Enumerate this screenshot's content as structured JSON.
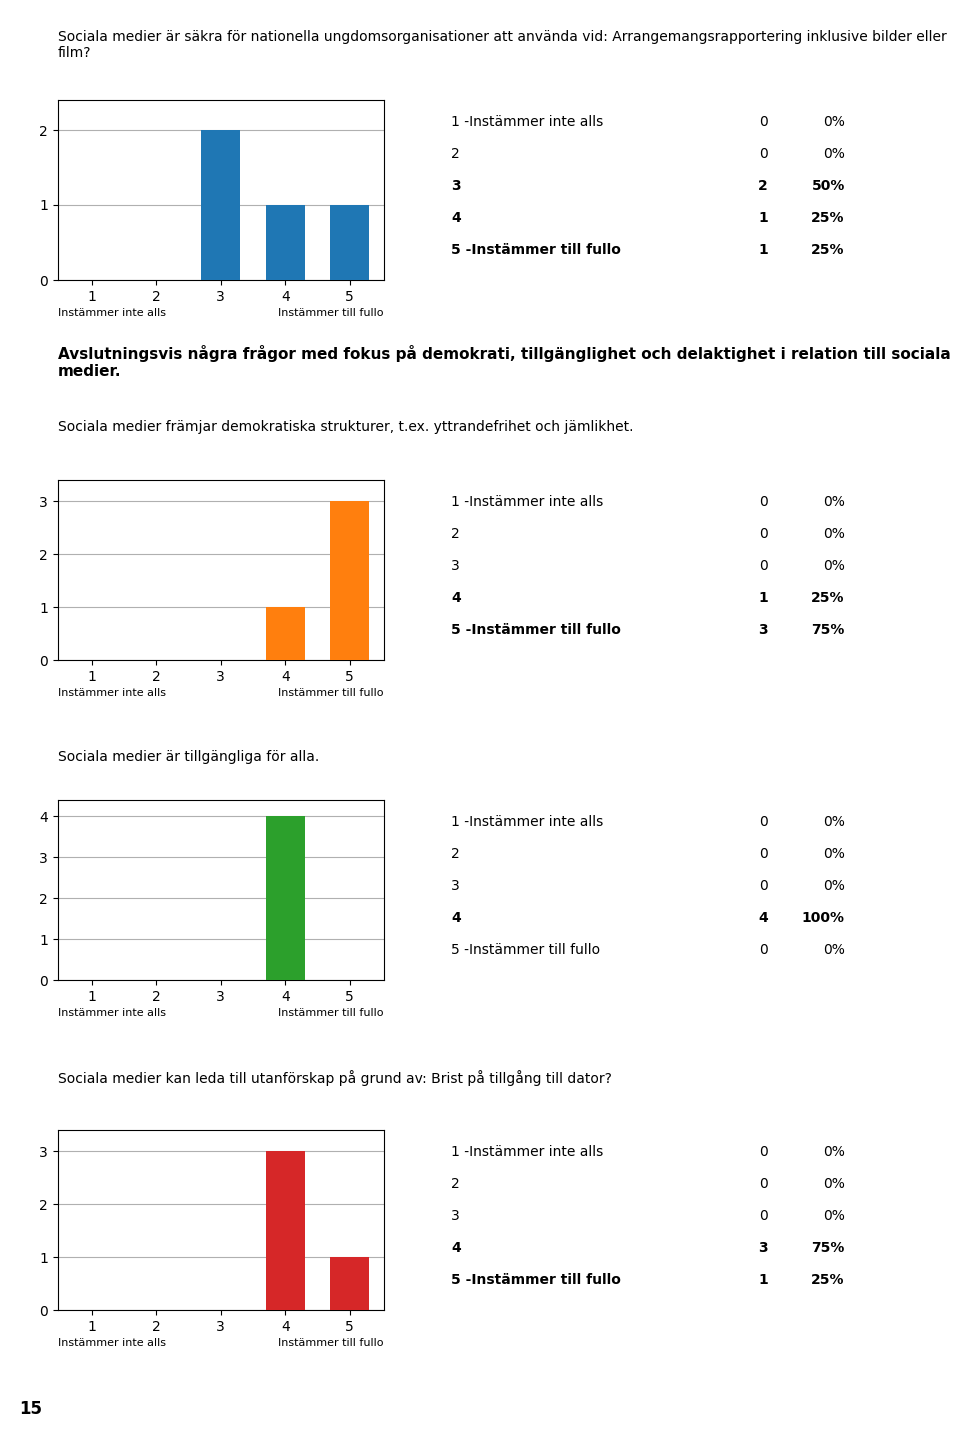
{
  "section_header": "Avslutningsvis några frågor med fokus på demokrati, tillgänglighet och delaktighet i relation till sociala medier.",
  "page_number": "15",
  "chart_data": [
    {
      "type": "bar",
      "title": "Sociala medier är säkra för nationella ungdomsorganisationer att använda vid: Arrangemangsrapportering inklusive bilder eller film?",
      "categories": [
        "1",
        "2",
        "3",
        "4",
        "5"
      ],
      "values": [
        0,
        0,
        2,
        1,
        1
      ],
      "ylim": [
        0,
        2.4
      ],
      "yticks": [
        0,
        1,
        2
      ],
      "grid": true,
      "xlabels": {
        "left": "Instämmer inte alls",
        "right": "Instämmer till fullo"
      },
      "annotations": [
        {
          "text": "1 -Instämmer inte alls",
          "count": 0,
          "pct": "0%"
        },
        {
          "text": "2",
          "count": 0,
          "pct": "0%"
        },
        {
          "text": "3",
          "count": 2,
          "pct": "50%"
        },
        {
          "text": "4",
          "count": 1,
          "pct": "25%"
        },
        {
          "text": "5 -Instämmer till fullo",
          "count": 1,
          "pct": "25%"
        }
      ]
    },
    {
      "type": "bar",
      "title": "Sociala medier främjar demokratiska strukturer, t.ex. yttrandefrihet och jämlikhet.",
      "categories": [
        "1",
        "2",
        "3",
        "4",
        "5"
      ],
      "values": [
        0,
        0,
        0,
        1,
        3
      ],
      "ylim": [
        0,
        3.4
      ],
      "yticks": [
        0,
        1,
        2,
        3
      ],
      "grid": true,
      "xlabels": {
        "left": "Instämmer inte alls",
        "right": "Instämmer till fullo"
      },
      "annotations": [
        {
          "text": "1 -Instämmer inte alls",
          "count": 0,
          "pct": "0%"
        },
        {
          "text": "2",
          "count": 0,
          "pct": "0%"
        },
        {
          "text": "3",
          "count": 0,
          "pct": "0%"
        },
        {
          "text": "4",
          "count": 1,
          "pct": "25%"
        },
        {
          "text": "5 -Instämmer till fullo",
          "count": 3,
          "pct": "75%"
        }
      ]
    },
    {
      "type": "bar",
      "title": "Sociala medier är tillgängliga för alla.",
      "categories": [
        "1",
        "2",
        "3",
        "4",
        "5"
      ],
      "values": [
        0,
        0,
        0,
        4,
        0
      ],
      "ylim": [
        0,
        4.4
      ],
      "yticks": [
        0,
        1,
        2,
        3,
        4
      ],
      "grid": true,
      "xlabels": {
        "left": "Instämmer inte alls",
        "right": "Instämmer till fullo"
      },
      "annotations": [
        {
          "text": "1 -Instämmer inte alls",
          "count": 0,
          "pct": "0%"
        },
        {
          "text": "2",
          "count": 0,
          "pct": "0%"
        },
        {
          "text": "3",
          "count": 0,
          "pct": "0%"
        },
        {
          "text": "4",
          "count": 4,
          "pct": "100%"
        },
        {
          "text": "5 -Instämmer till fullo",
          "count": 0,
          "pct": "0%"
        }
      ]
    },
    {
      "type": "bar",
      "title": "Sociala medier kan leda till utanförskap på grund av: Brist på tillgång till dator?",
      "categories": [
        "1",
        "2",
        "3",
        "4",
        "5"
      ],
      "values": [
        0,
        0,
        0,
        3,
        1
      ],
      "ylim": [
        0,
        3.4
      ],
      "yticks": [
        0,
        1,
        2,
        3
      ],
      "grid": true,
      "xlabels": {
        "left": "Instämmer inte alls",
        "right": "Instämmer till fullo"
      },
      "annotations": [
        {
          "text": "1 -Instämmer inte alls",
          "count": 0,
          "pct": "0%"
        },
        {
          "text": "2",
          "count": 0,
          "pct": "0%"
        },
        {
          "text": "3",
          "count": 0,
          "pct": "0%"
        },
        {
          "text": "4",
          "count": 3,
          "pct": "75%"
        },
        {
          "text": "5 -Instämmer till fullo",
          "count": 1,
          "pct": "25%"
        }
      ]
    }
  ]
}
